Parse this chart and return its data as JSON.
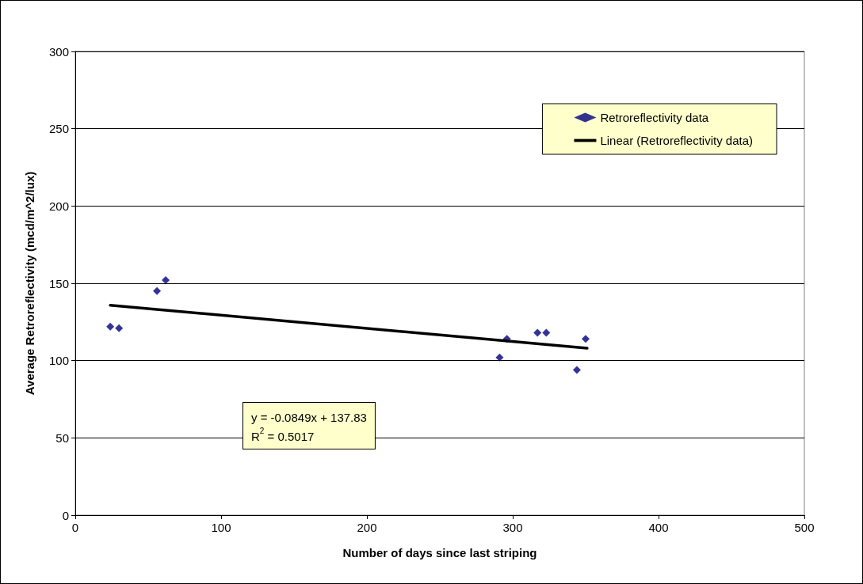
{
  "chart_data": {
    "type": "scatter",
    "xlabel": "Number of days since last striping",
    "ylabel": "Average Retroreflectivity (mcd/m^2/lux)",
    "annotations": [
      "y = -0.0849x + 137.83\nR$^{2}$ = 0.5017"
    ],
    "series": [
      {
        "name": "Retroreflectivity data",
        "color": "#000080",
        "marker": "diamond",
        "x": [
          24,
          30,
          56,
          62,
          291,
          296,
          317,
          323,
          344,
          350
        ],
        "values": [
          122,
          121,
          145,
          152,
          102,
          114,
          118,
          118,
          94,
          114
        ]
      },
      {
        "name": "Linear (Retroreflectivity data)",
        "type": "line",
        "color": "#000000",
        "marker": "none",
        "line_style": "solid",
        "x": [
          24,
          351
        ],
        "values": [
          135.8,
          108.0
        ]
      }
    ],
    "xlim": [
      0,
      500
    ],
    "xticks": [
      0,
      100,
      200,
      300,
      400,
      500
    ],
    "ylim": [
      0,
      300
    ],
    "yticks": [
      0,
      50,
      100,
      150,
      200,
      250,
      300
    ],
    "grid": "y",
    "legend": "top right"
  }
}
